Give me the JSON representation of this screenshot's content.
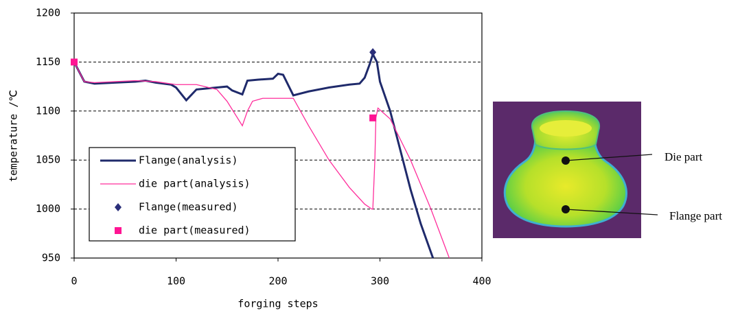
{
  "chart_data": {
    "type": "line",
    "xlabel": "forging steps",
    "ylabel": "temperature /℃",
    "xlim": [
      0,
      400
    ],
    "xticks": [
      0,
      100,
      200,
      300,
      400
    ],
    "ylim": [
      950,
      1200
    ],
    "yticks": [
      950,
      1000,
      1050,
      1100,
      1150,
      1200
    ],
    "grid": true,
    "legend": "lower left",
    "series": [
      {
        "name": "Flange(analysis)",
        "type": "line",
        "color": "#1f2a6b",
        "x": [
          0,
          10,
          20,
          40,
          60,
          70,
          80,
          95,
          100,
          110,
          120,
          140,
          150,
          155,
          165,
          170,
          180,
          195,
          200,
          205,
          215,
          230,
          250,
          270,
          280,
          285,
          290,
          293,
          297,
          300,
          310,
          320,
          330,
          340,
          352
        ],
        "values": [
          1150,
          1130,
          1128,
          1129,
          1130,
          1131,
          1129,
          1127,
          1124,
          1111,
          1122,
          1124,
          1125,
          1121,
          1117,
          1131,
          1132,
          1133,
          1138,
          1137,
          1116,
          1120,
          1124,
          1127,
          1128,
          1134,
          1148,
          1158,
          1150,
          1130,
          1100,
          1060,
          1020,
          985,
          950
        ]
      },
      {
        "name": "die part(analysis)",
        "type": "line",
        "color": "#ff2d9b",
        "x": [
          0,
          10,
          20,
          60,
          80,
          100,
          120,
          140,
          150,
          165,
          170,
          175,
          185,
          215,
          230,
          250,
          270,
          285,
          292,
          293,
          295,
          296,
          298,
          310,
          330,
          350,
          368
        ],
        "values": [
          1150,
          1130,
          1129,
          1131,
          1130,
          1127,
          1127,
          1122,
          1110,
          1085,
          1100,
          1110,
          1113,
          1113,
          1085,
          1050,
          1022,
          1005,
          1000,
          1000,
          1050,
          1093,
          1103,
          1092,
          1050,
          1000,
          950
        ]
      },
      {
        "name": "Flange(measured)",
        "type": "scatter",
        "marker": "diamond",
        "color": "#2b2f7a",
        "x": [
          293
        ],
        "values": [
          1160
        ]
      },
      {
        "name": "die part(measured)",
        "type": "scatter",
        "marker": "square",
        "color": "#ff1493",
        "x": [
          0,
          293
        ],
        "values": [
          1150,
          1093
        ]
      }
    ]
  },
  "figure_labels": [
    "Die part",
    "Flange part"
  ]
}
